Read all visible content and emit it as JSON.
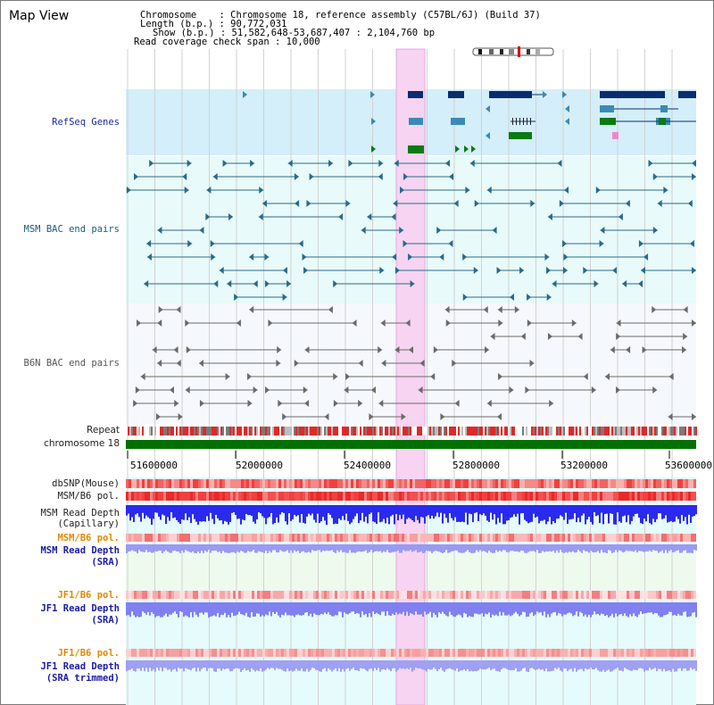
{
  "title": "Map View",
  "header": {
    "lines": [
      "Chromosome    : Chromosome 18, reference assembly (C57BL/6J) (Build 37)",
      "Length (b.p.) : 90,772,031",
      "Show (b.p.) : 51,582,648-53,687,407 : 2,104,760 bp",
      "Read coverage check span : 10,000"
    ]
  },
  "tracks": {
    "refseq": "RefSeq Genes",
    "msm_bac": "MSM BAC end pairs",
    "b6n_bac": "B6N BAC end pairs",
    "repeat": "Repeat",
    "chromosome": "chromosome 18",
    "dbsnp": "dbSNP(Mouse)",
    "msm_b6_pol_1": "MSM/B6 pol.",
    "msm_depth_cap_1": "MSM Read Depth",
    "msm_depth_cap_2": "(Capillary)",
    "msm_b6_pol_2": "MSM/B6 pol.",
    "msm_depth_sra_1": "MSM Read Depth",
    "msm_depth_sra_2": "(SRA)",
    "jf1_b6_pol_1": "JF1/B6 pol.",
    "jf1_depth_sra_1": "JF1 Read Depth",
    "jf1_depth_sra_2": "(SRA)",
    "jf1_b6_pol_2": "JF1/B6 pol.",
    "jf1_depth_trim_1": "JF1 Read Depth",
    "jf1_depth_trim_2": "(SRA trimmed)"
  },
  "axis": {
    "ticks": [
      "51600000",
      "52000000",
      "52400000",
      "52800000",
      "53200000",
      "53600000"
    ]
  },
  "colors": {
    "refseq_bg": "#d4eefa",
    "msm_bg": "#e8fafa",
    "b6n_bg": "#f5f8fd",
    "highlight": "#f6d4f2",
    "chromosome_bar": "#007000",
    "refseq_dark": "#0a2d6e",
    "refseq_mid": "#3a8ab6",
    "refseq_green": "#0a7a14",
    "msm_line": "#2a6a8a",
    "b6n_line": "#6a6a6a",
    "snp_red": "#f04040",
    "depth_blue": "#2a2aee",
    "depth_light": "#8080f0"
  },
  "icons": {
    "ideogram": "chromosome-ideogram-icon"
  }
}
